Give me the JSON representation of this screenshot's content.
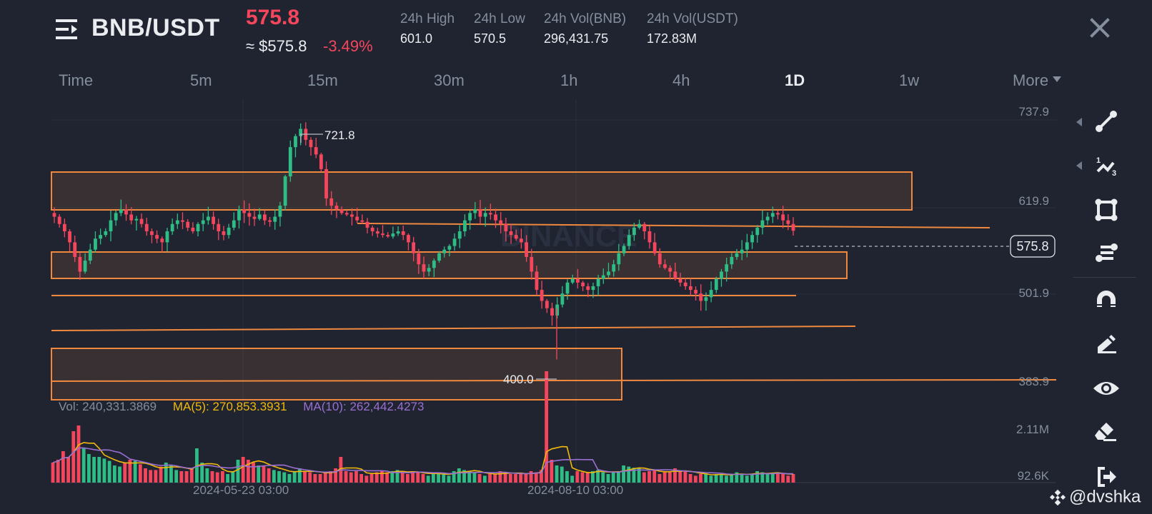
{
  "header": {
    "pair": "BNB/USDT",
    "last_price": "575.8",
    "usd_price": "≈ $575.8",
    "change_pct": "-3.49%",
    "stats": [
      {
        "label": "24h High",
        "value": "601.0"
      },
      {
        "label": "24h Low",
        "value": "570.5"
      },
      {
        "label": "24h Vol(BNB)",
        "value": "296,431.75"
      },
      {
        "label": "24h Vol(USDT)",
        "value": "172.83M"
      }
    ]
  },
  "tabs": [
    {
      "label": "Time",
      "active": false
    },
    {
      "label": "5m",
      "active": false
    },
    {
      "label": "15m",
      "active": false
    },
    {
      "label": "30m",
      "active": false
    },
    {
      "label": "1h",
      "active": false
    },
    {
      "label": "4h",
      "active": false
    },
    {
      "label": "1D",
      "active": true
    },
    {
      "label": "1w",
      "active": false
    },
    {
      "label": "More",
      "active": false
    }
  ],
  "toolbar": {
    "tools": [
      "trend-line",
      "fibonacci",
      "rectangle",
      "horizontal-lines",
      "magnet",
      "pencil",
      "eye",
      "eraser",
      "exit"
    ]
  },
  "volume_legend": {
    "vol": "Vol: 240,331.3869",
    "ma5": "MA(5): 270,853.3931",
    "ma10": "MA(10): 262,442.4273"
  },
  "watermark": "@dvshka",
  "colors": {
    "up": "#2ebd85",
    "down": "#f6465d",
    "zone": "#f0883e",
    "ma5": "#f0b90b",
    "ma10": "#9a6fd1",
    "background": "#1f2430"
  },
  "chart_data": {
    "type": "candlestick",
    "title": "BNB/USDT 1D",
    "interval": "1D",
    "price_axis_ticks": [
      "737.9",
      "619.9",
      "501.9",
      "383.9"
    ],
    "volume_axis_ticks": [
      "2.11M",
      "92.6K"
    ],
    "date_labels": [
      "2024-05-23 03:00",
      "2024-08-10 03:00"
    ],
    "annotations": {
      "high_marker": "721.8",
      "low_marker": "400.0",
      "current_price_tag": "575.8"
    },
    "ylim": [
      370,
      750
    ],
    "zones": [
      {
        "type": "box",
        "top": 672,
        "bottom": 620,
        "x_end_frac": 0.83
      },
      {
        "type": "box",
        "top": 563,
        "bottom": 527,
        "x_end_frac": 0.77
      },
      {
        "type": "box",
        "top": 432,
        "bottom": 388,
        "x_end_frac": 0.55
      },
      {
        "type": "line",
        "price": 597,
        "x_start_frac": 0.3,
        "x_end_frac": 0.91
      },
      {
        "type": "line",
        "price": 503,
        "x_start_frac": 0.0,
        "x_end_frac": 0.72
      },
      {
        "type": "line",
        "price": 460,
        "x_start_frac": 0.0,
        "x_end_frac": 0.78
      },
      {
        "type": "line",
        "price": 388,
        "x_start_frac": 0.0,
        "x_end_frac": 1.0
      }
    ],
    "close_series": [
      595,
      585,
      575,
      560,
      540,
      520,
      535,
      550,
      565,
      570,
      575,
      590,
      600,
      605,
      598,
      590,
      592,
      585,
      575,
      570,
      565,
      560,
      575,
      585,
      590,
      588,
      580,
      575,
      585,
      590,
      595,
      585,
      575,
      570,
      580,
      590,
      605,
      600,
      595,
      592,
      598,
      590,
      588,
      595,
      610,
      650,
      690,
      705,
      715,
      700,
      690,
      680,
      660,
      620,
      610,
      605,
      600,
      598,
      595,
      590,
      588,
      580,
      575,
      572,
      570,
      568,
      572,
      575,
      570,
      560,
      545,
      530,
      520,
      525,
      535,
      545,
      550,
      555,
      565,
      575,
      590,
      600,
      605,
      595,
      600,
      598,
      590,
      585,
      575,
      570,
      565,
      560,
      540,
      520,
      495,
      480,
      470,
      460,
      475,
      490,
      505,
      510,
      505,
      500,
      495,
      500,
      510,
      515,
      520,
      530,
      545,
      555,
      570,
      580,
      585,
      575,
      560,
      545,
      530,
      525,
      520,
      510,
      505,
      500,
      495,
      490,
      480,
      485,
      495,
      510,
      520,
      530,
      540,
      545,
      550,
      560,
      570,
      580,
      590,
      595,
      600,
      598,
      590,
      585,
      575.8
    ],
    "volume_series": [
      0.35,
      0.4,
      0.55,
      0.45,
      0.9,
      1.0,
      0.6,
      0.5,
      0.45,
      0.45,
      0.42,
      0.38,
      0.3,
      0.28,
      0.35,
      0.4,
      0.38,
      0.32,
      0.25,
      0.22,
      0.22,
      0.28,
      0.35,
      0.3,
      0.22,
      0.2,
      0.2,
      0.25,
      0.6,
      0.35,
      0.25,
      0.2,
      0.18,
      0.2,
      0.15,
      0.2,
      0.4,
      0.45,
      0.4,
      0.35,
      0.3,
      0.3,
      0.25,
      0.22,
      0.2,
      0.18,
      0.15,
      0.2,
      0.25,
      0.2,
      0.18,
      0.15,
      0.15,
      0.18,
      0.2,
      0.25,
      0.45,
      0.2,
      0.18,
      0.2,
      0.15,
      0.12,
      0.15,
      0.18,
      0.2,
      0.18,
      0.2,
      0.22,
      0.18,
      0.15,
      0.2,
      0.18,
      0.15,
      0.12,
      0.15,
      0.18,
      0.15,
      0.12,
      0.2,
      0.25,
      0.22,
      0.2,
      0.18,
      0.15,
      0.12,
      0.15,
      0.15,
      0.2,
      0.18,
      0.15,
      0.15,
      0.15,
      0.15,
      0.2,
      0.18,
      0.22,
      1.95,
      0.4,
      0.3,
      0.28,
      0.2,
      0.12,
      0.2,
      0.18,
      0.18,
      0.2,
      0.22,
      0.18,
      0.15,
      0.18,
      0.2,
      0.3,
      0.28,
      0.26,
      0.25,
      0.18,
      0.2,
      0.22,
      0.15,
      0.2,
      0.18,
      0.25,
      0.2,
      0.2,
      0.15,
      0.12,
      0.15,
      0.15,
      0.12,
      0.15,
      0.15,
      0.12,
      0.15,
      0.18,
      0.15,
      0.12,
      0.15,
      0.2,
      0.18,
      0.15,
      0.15,
      0.18,
      0.15,
      0.12,
      0.15
    ]
  }
}
